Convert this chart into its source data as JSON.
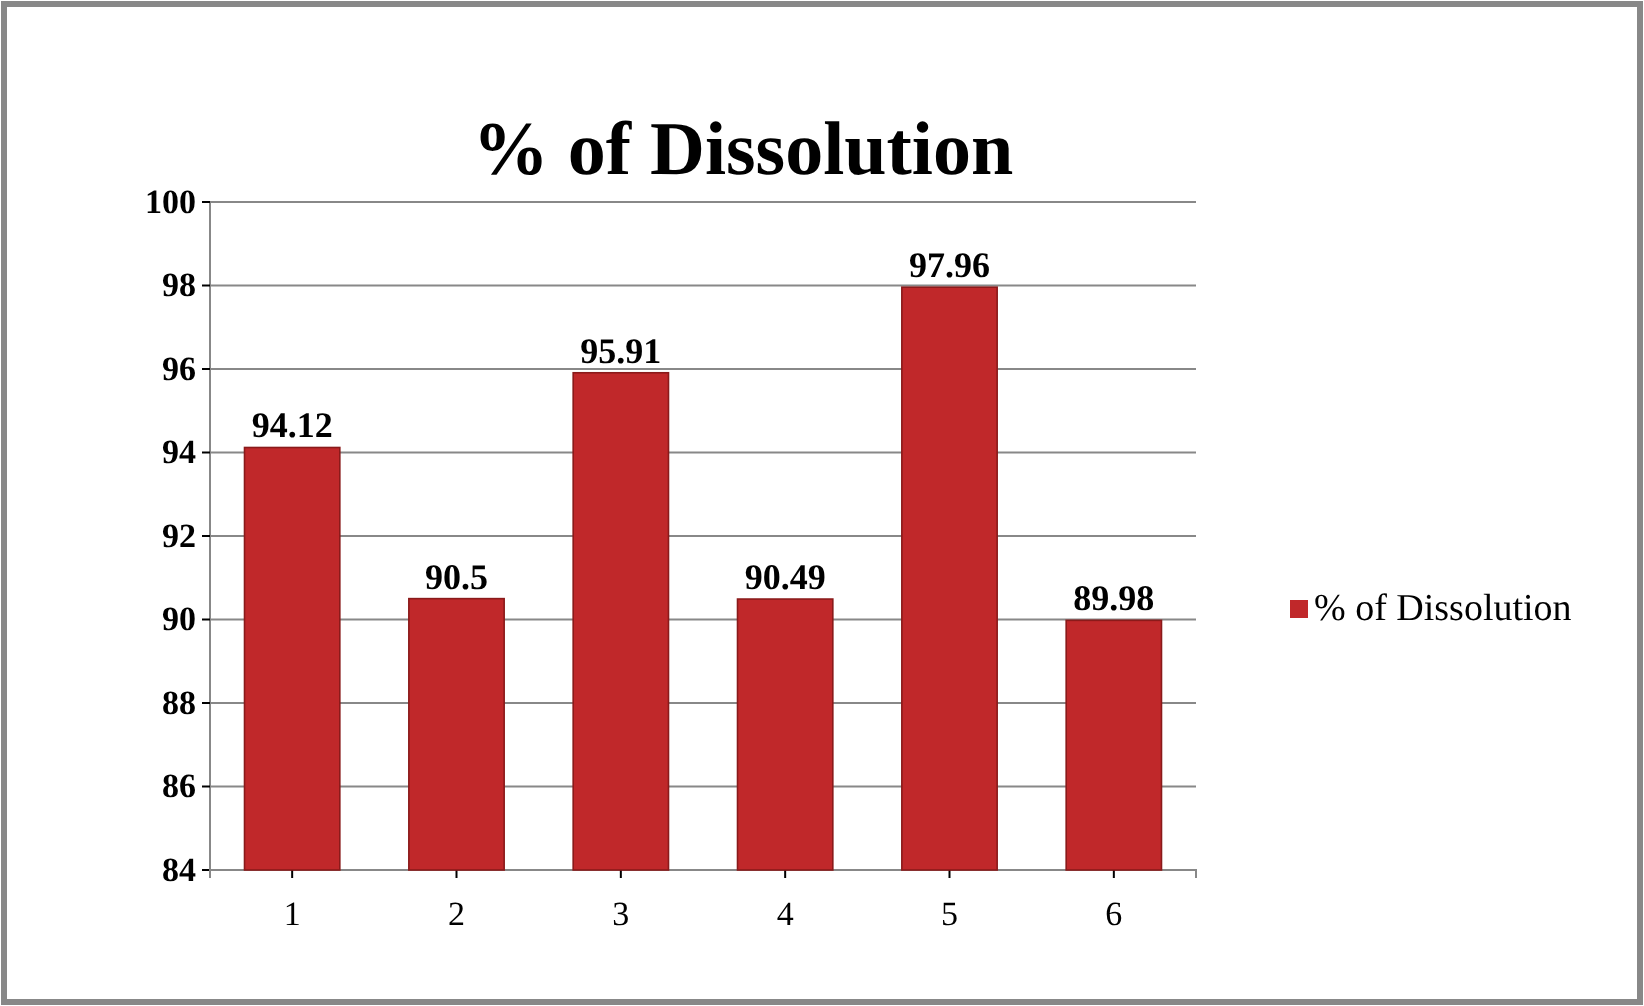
{
  "chart_data": {
    "type": "bar",
    "title": "% of Dissolution",
    "categories": [
      "1",
      "2",
      "3",
      "4",
      "5",
      "6"
    ],
    "series": [
      {
        "name": "% of Dissolution",
        "color": "#c0282a",
        "values": [
          94.12,
          90.5,
          95.91,
          90.49,
          97.96,
          89.98
        ]
      }
    ],
    "ylim": [
      84,
      100
    ],
    "yticks": [
      84,
      86,
      88,
      90,
      92,
      94,
      96,
      98,
      100
    ],
    "grid": "y",
    "legend": "right",
    "data_labels": true
  }
}
